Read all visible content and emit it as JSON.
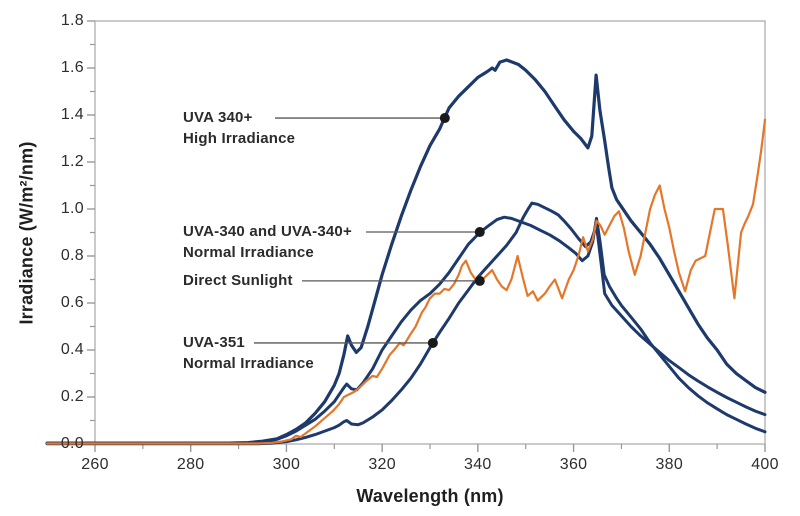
{
  "chart_data": {
    "type": "line",
    "title": "",
    "xlabel": "Wavelength (nm)",
    "ylabel": "Irradiance (W/m²/nm)",
    "xlim": [
      250,
      400
    ],
    "ylim": [
      0,
      1.8
    ],
    "x_major_ticks": [
      260,
      280,
      300,
      320,
      340,
      360,
      380,
      400
    ],
    "x_minor_ticks": [
      270,
      290,
      310,
      330,
      350,
      370,
      390
    ],
    "y_major_ticks": [
      0.0,
      0.2,
      0.4,
      0.6,
      0.8,
      1.0,
      1.2,
      1.4,
      1.6,
      1.8
    ],
    "y_minor_ticks": [
      0.1,
      0.3,
      0.5,
      0.7,
      0.9,
      1.1,
      1.3,
      1.5,
      1.7
    ],
    "grid": false,
    "legend_position": "inline-annotations",
    "colors": {
      "lamp": "#1E3A6D",
      "sunlight": "#E4772A",
      "callout": "#58595B",
      "dot": "#1A1A1A",
      "frame": "#B3B3B3",
      "tick": "#999999"
    },
    "series": [
      {
        "name": "UVA 340+ High Irradiance",
        "color": "#1E3A6D",
        "width": 3.2,
        "points": [
          [
            250,
            0.004
          ],
          [
            288,
            0.004
          ],
          [
            292,
            0.006
          ],
          [
            295,
            0.012
          ],
          [
            298,
            0.022
          ],
          [
            300,
            0.04
          ],
          [
            302,
            0.062
          ],
          [
            304,
            0.09
          ],
          [
            306,
            0.13
          ],
          [
            308,
            0.18
          ],
          [
            310,
            0.25
          ],
          [
            311,
            0.3
          ],
          [
            312,
            0.38
          ],
          [
            312.8,
            0.46
          ],
          [
            313.6,
            0.42
          ],
          [
            314.6,
            0.39
          ],
          [
            315.6,
            0.41
          ],
          [
            317,
            0.5
          ],
          [
            318.5,
            0.61
          ],
          [
            320,
            0.72
          ],
          [
            322,
            0.85
          ],
          [
            324,
            0.97
          ],
          [
            326,
            1.08
          ],
          [
            328,
            1.18
          ],
          [
            330,
            1.27
          ],
          [
            332,
            1.34
          ],
          [
            333.1,
            1.39
          ],
          [
            334,
            1.43
          ],
          [
            336,
            1.48
          ],
          [
            338,
            1.52
          ],
          [
            340,
            1.56
          ],
          [
            342,
            1.585
          ],
          [
            343,
            1.6
          ],
          [
            343.6,
            1.59
          ],
          [
            344.6,
            1.625
          ],
          [
            346,
            1.634
          ],
          [
            347.2,
            1.625
          ],
          [
            348.5,
            1.615
          ],
          [
            350,
            1.59
          ],
          [
            352,
            1.55
          ],
          [
            354,
            1.5
          ],
          [
            356,
            1.44
          ],
          [
            358,
            1.38
          ],
          [
            360,
            1.33
          ],
          [
            361.5,
            1.3
          ],
          [
            363,
            1.26
          ],
          [
            363.8,
            1.31
          ],
          [
            364.7,
            1.57
          ],
          [
            365.5,
            1.42
          ],
          [
            366.5,
            1.29
          ],
          [
            367.3,
            1.18
          ],
          [
            368,
            1.09
          ],
          [
            369,
            1.04
          ],
          [
            370,
            1.01
          ],
          [
            372,
            0.95
          ],
          [
            374,
            0.9
          ],
          [
            376,
            0.85
          ],
          [
            378,
            0.79
          ],
          [
            380,
            0.72
          ],
          [
            382,
            0.65
          ],
          [
            384,
            0.58
          ],
          [
            386,
            0.51
          ],
          [
            388,
            0.45
          ],
          [
            390,
            0.4
          ],
          [
            392,
            0.34
          ],
          [
            394,
            0.3
          ],
          [
            396,
            0.27
          ],
          [
            398,
            0.24
          ],
          [
            400,
            0.22
          ]
        ]
      },
      {
        "name": "UVA-340 and UVA-340+ Normal Irradiance",
        "color": "#1E3A6D",
        "width": 3,
        "points": [
          [
            250,
            0.002
          ],
          [
            290,
            0.002
          ],
          [
            294,
            0.006
          ],
          [
            296,
            0.01
          ],
          [
            298,
            0.02
          ],
          [
            300,
            0.035
          ],
          [
            302,
            0.055
          ],
          [
            304,
            0.08
          ],
          [
            306,
            0.105
          ],
          [
            308,
            0.14
          ],
          [
            310,
            0.18
          ],
          [
            311,
            0.21
          ],
          [
            312,
            0.24
          ],
          [
            312.6,
            0.255
          ],
          [
            313.6,
            0.235
          ],
          [
            314.7,
            0.23
          ],
          [
            316,
            0.26
          ],
          [
            318,
            0.32
          ],
          [
            320,
            0.4
          ],
          [
            322,
            0.46
          ],
          [
            324,
            0.52
          ],
          [
            326,
            0.57
          ],
          [
            328,
            0.61
          ],
          [
            330,
            0.64
          ],
          [
            332,
            0.68
          ],
          [
            334,
            0.73
          ],
          [
            336,
            0.79
          ],
          [
            338,
            0.85
          ],
          [
            340.4,
            0.9
          ],
          [
            342,
            0.925
          ],
          [
            344,
            0.955
          ],
          [
            345.5,
            0.965
          ],
          [
            347,
            0.96
          ],
          [
            349,
            0.945
          ],
          [
            351,
            0.93
          ],
          [
            353,
            0.91
          ],
          [
            355,
            0.89
          ],
          [
            357,
            0.865
          ],
          [
            359,
            0.835
          ],
          [
            360.5,
            0.81
          ],
          [
            361.8,
            0.78
          ],
          [
            363,
            0.8
          ],
          [
            364,
            0.86
          ],
          [
            364.8,
            0.96
          ],
          [
            365.6,
            0.85
          ],
          [
            366.4,
            0.72
          ],
          [
            367.5,
            0.67
          ],
          [
            369,
            0.62
          ],
          [
            370,
            0.59
          ],
          [
            372,
            0.54
          ],
          [
            374,
            0.49
          ],
          [
            376,
            0.43
          ],
          [
            378,
            0.38
          ],
          [
            380,
            0.33
          ],
          [
            382,
            0.28
          ],
          [
            384,
            0.24
          ],
          [
            386,
            0.205
          ],
          [
            388,
            0.175
          ],
          [
            390,
            0.15
          ],
          [
            392,
            0.125
          ],
          [
            394,
            0.105
          ],
          [
            396,
            0.085
          ],
          [
            398,
            0.067
          ],
          [
            400,
            0.052
          ]
        ]
      },
      {
        "name": "UVA-351 Normal Irradiance",
        "color": "#1E3A6D",
        "width": 3,
        "points": [
          [
            250,
            0.001
          ],
          [
            294,
            0.001
          ],
          [
            297,
            0.004
          ],
          [
            300,
            0.01
          ],
          [
            302,
            0.018
          ],
          [
            304,
            0.028
          ],
          [
            306,
            0.04
          ],
          [
            308,
            0.055
          ],
          [
            310,
            0.07
          ],
          [
            311,
            0.08
          ],
          [
            312,
            0.095
          ],
          [
            312.6,
            0.1
          ],
          [
            313.6,
            0.085
          ],
          [
            315,
            0.082
          ],
          [
            316,
            0.09
          ],
          [
            318,
            0.115
          ],
          [
            320,
            0.145
          ],
          [
            322,
            0.185
          ],
          [
            324,
            0.23
          ],
          [
            326,
            0.28
          ],
          [
            328,
            0.34
          ],
          [
            330,
            0.41
          ],
          [
            330.6,
            0.43
          ],
          [
            332,
            0.475
          ],
          [
            334,
            0.535
          ],
          [
            336,
            0.6
          ],
          [
            338,
            0.655
          ],
          [
            340,
            0.71
          ],
          [
            342,
            0.755
          ],
          [
            344,
            0.8
          ],
          [
            346,
            0.845
          ],
          [
            348,
            0.9
          ],
          [
            349.5,
            0.965
          ],
          [
            350.5,
            1.0
          ],
          [
            351.3,
            1.025
          ],
          [
            352.5,
            1.02
          ],
          [
            354,
            1.005
          ],
          [
            355.5,
            0.99
          ],
          [
            356.8,
            0.975
          ],
          [
            358,
            0.95
          ],
          [
            359.5,
            0.915
          ],
          [
            361,
            0.875
          ],
          [
            362.5,
            0.84
          ],
          [
            363.6,
            0.86
          ],
          [
            364.8,
            0.93
          ],
          [
            365.7,
            0.78
          ],
          [
            366.5,
            0.64
          ],
          [
            368,
            0.59
          ],
          [
            370,
            0.545
          ],
          [
            372,
            0.5
          ],
          [
            374,
            0.46
          ],
          [
            376,
            0.425
          ],
          [
            378,
            0.39
          ],
          [
            380,
            0.355
          ],
          [
            382,
            0.325
          ],
          [
            384,
            0.295
          ],
          [
            386,
            0.268
          ],
          [
            388,
            0.243
          ],
          [
            390,
            0.22
          ],
          [
            392,
            0.198
          ],
          [
            394,
            0.178
          ],
          [
            396,
            0.158
          ],
          [
            398,
            0.14
          ],
          [
            400,
            0.125
          ]
        ]
      },
      {
        "name": "Direct Sunlight",
        "color": "#E4772A",
        "width": 2.2,
        "points": [
          [
            250,
            0.002
          ],
          [
            294,
            0.002
          ],
          [
            297,
            0.005
          ],
          [
            299,
            0.01
          ],
          [
            301,
            0.02
          ],
          [
            302,
            0.035
          ],
          [
            303,
            0.03
          ],
          [
            304,
            0.045
          ],
          [
            306,
            0.075
          ],
          [
            308,
            0.11
          ],
          [
            309.7,
            0.14
          ],
          [
            311,
            0.17
          ],
          [
            312,
            0.2
          ],
          [
            313,
            0.21
          ],
          [
            314,
            0.22
          ],
          [
            315,
            0.235
          ],
          [
            316.8,
            0.27
          ],
          [
            318,
            0.29
          ],
          [
            318.9,
            0.285
          ],
          [
            320,
            0.32
          ],
          [
            321.6,
            0.38
          ],
          [
            322.5,
            0.4
          ],
          [
            323.7,
            0.43
          ],
          [
            324.5,
            0.42
          ],
          [
            326,
            0.47
          ],
          [
            327,
            0.5
          ],
          [
            328.3,
            0.56
          ],
          [
            329,
            0.58
          ],
          [
            330,
            0.62
          ],
          [
            331,
            0.64
          ],
          [
            332,
            0.64
          ],
          [
            333,
            0.66
          ],
          [
            334,
            0.655
          ],
          [
            335,
            0.68
          ],
          [
            336,
            0.72
          ],
          [
            336.7,
            0.76
          ],
          [
            337.5,
            0.78
          ],
          [
            338.5,
            0.73
          ],
          [
            339.5,
            0.7
          ],
          [
            340.4,
            0.69
          ],
          [
            341.5,
            0.71
          ],
          [
            343,
            0.74
          ],
          [
            344,
            0.7
          ],
          [
            345,
            0.67
          ],
          [
            346,
            0.655
          ],
          [
            347,
            0.7
          ],
          [
            348.3,
            0.8
          ],
          [
            349.5,
            0.7
          ],
          [
            350.4,
            0.63
          ],
          [
            351.5,
            0.65
          ],
          [
            352.5,
            0.61
          ],
          [
            354,
            0.64
          ],
          [
            355,
            0.67
          ],
          [
            356.1,
            0.7
          ],
          [
            357.6,
            0.62
          ],
          [
            359,
            0.7
          ],
          [
            360,
            0.74
          ],
          [
            361,
            0.8
          ],
          [
            362,
            0.88
          ],
          [
            363,
            0.82
          ],
          [
            364,
            0.87
          ],
          [
            364.8,
            0.95
          ],
          [
            365.6,
            0.93
          ],
          [
            366.5,
            0.89
          ],
          [
            367.5,
            0.93
          ],
          [
            368.5,
            0.97
          ],
          [
            369.5,
            0.99
          ],
          [
            370.5,
            0.92
          ],
          [
            371.5,
            0.82
          ],
          [
            372.8,
            0.72
          ],
          [
            374,
            0.8
          ],
          [
            375,
            0.9
          ],
          [
            376,
            1.0
          ],
          [
            377,
            1.06
          ],
          [
            378,
            1.1
          ],
          [
            379,
            1.0
          ],
          [
            380,
            0.92
          ],
          [
            381,
            0.82
          ],
          [
            382,
            0.73
          ],
          [
            383.3,
            0.65
          ],
          [
            384.5,
            0.74
          ],
          [
            385.5,
            0.78
          ],
          [
            386.5,
            0.79
          ],
          [
            387.5,
            0.8
          ],
          [
            388.5,
            0.9
          ],
          [
            389.5,
            1.0
          ],
          [
            391.2,
            1.0
          ],
          [
            392.2,
            0.85
          ],
          [
            393.6,
            0.62
          ],
          [
            395,
            0.9
          ],
          [
            395.8,
            0.94
          ],
          [
            396.5,
            0.97
          ],
          [
            397.5,
            1.02
          ],
          [
            398.5,
            1.15
          ],
          [
            399.2,
            1.25
          ],
          [
            400,
            1.38
          ]
        ]
      }
    ],
    "annotations": [
      {
        "lines": [
          "UVA 340+",
          "High Irradiance"
        ],
        "dot_nm": 333.1,
        "dot_val": 1.387
      },
      {
        "lines": [
          "UVA-340 and UVA-340+",
          "Normal Irradiance"
        ],
        "dot_nm": 340.4,
        "dot_val": 0.902
      },
      {
        "lines": [
          "Direct Sunlight"
        ],
        "dot_nm": 340.4,
        "dot_val": 0.694
      },
      {
        "lines": [
          "UVA-351",
          "Normal Irradiance"
        ],
        "dot_nm": 330.6,
        "dot_val": 0.43
      }
    ]
  }
}
